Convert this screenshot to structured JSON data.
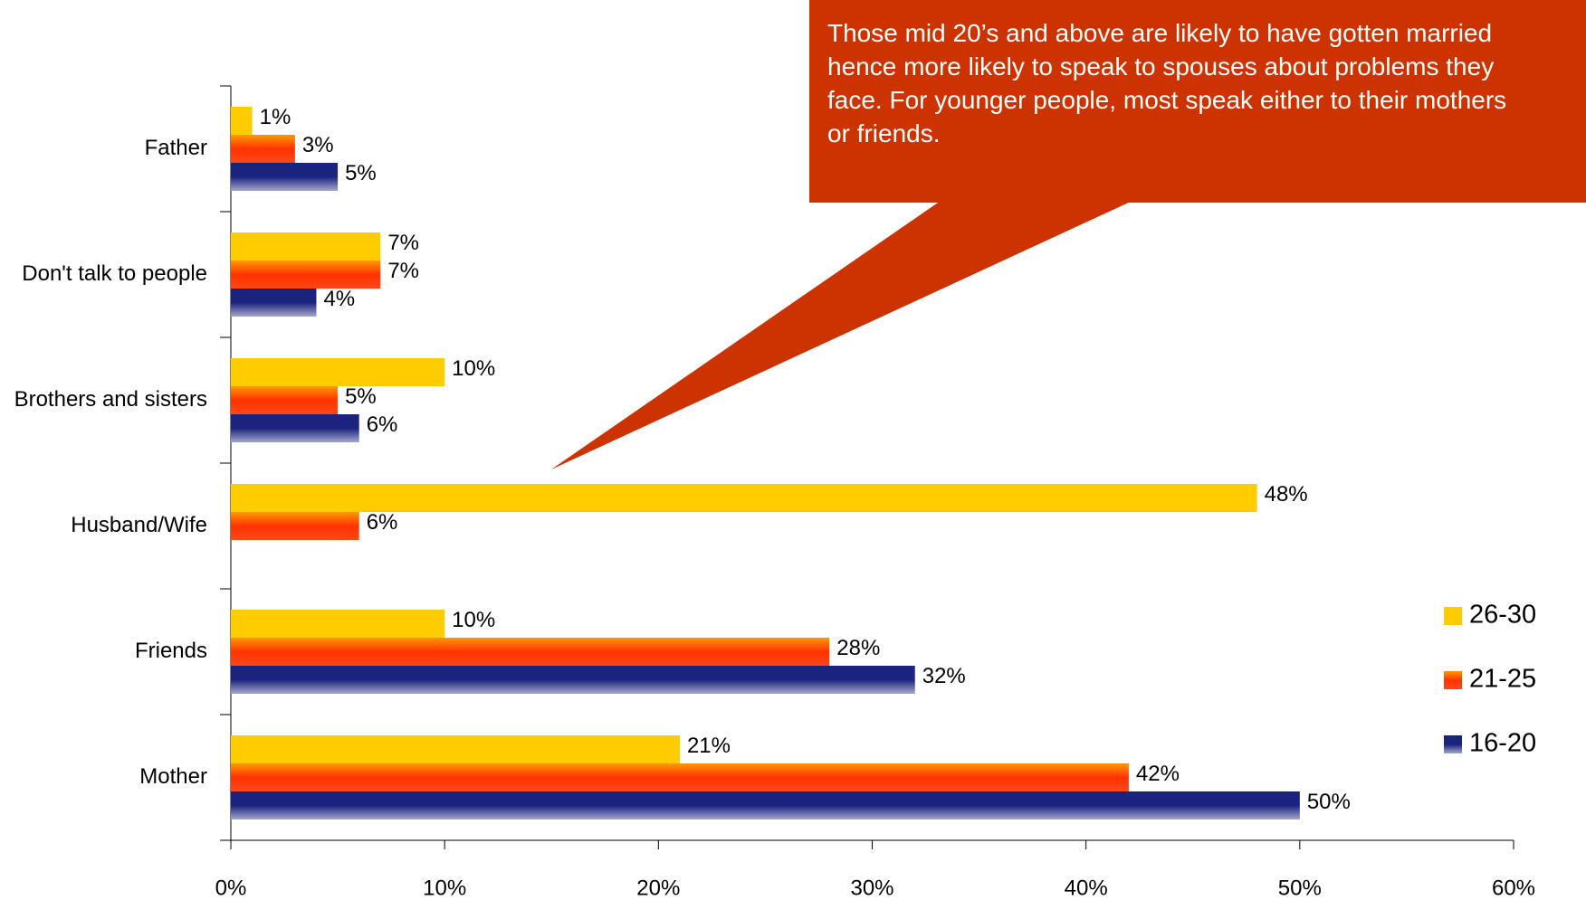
{
  "chart_data": {
    "type": "hbar",
    "annotation": "Those mid 20’s and above are likely to have gotten married hence more likely to speak to spouses about problems they face. For younger people, most speak either to their mothers or friends.",
    "categories": [
      "Father",
      "Don't talk to people",
      "Brothers and sisters",
      "Husband/Wife",
      "Friends",
      "Mother"
    ],
    "series": [
      {
        "name": "26-30",
        "color": "#ffcc00",
        "values": [
          1,
          7,
          10,
          48,
          10,
          21
        ],
        "value_labels": [
          "1%",
          "7%",
          "10%",
          "48%",
          "10%",
          "21%"
        ]
      },
      {
        "name": "21-25",
        "color": "#ff3300",
        "values": [
          3,
          7,
          5,
          6,
          28,
          42
        ],
        "value_labels": [
          "3%",
          "7%",
          "5%",
          "6%",
          "28%",
          "42%"
        ]
      },
      {
        "name": "16-20",
        "color": "#1a237e",
        "values": [
          5,
          4,
          6,
          null,
          32,
          50
        ],
        "value_labels": [
          "5%",
          "4%",
          "6%",
          null,
          "32%",
          "50%"
        ]
      }
    ],
    "xlim": [
      0,
      60
    ],
    "xticks": [
      {
        "value": 0,
        "label": "0%"
      },
      {
        "value": 10,
        "label": "10%"
      },
      {
        "value": 20,
        "label": "20%"
      },
      {
        "value": 30,
        "label": "30%"
      },
      {
        "value": 40,
        "label": "40%"
      },
      {
        "value": 50,
        "label": "50%"
      },
      {
        "value": 60,
        "label": "60%"
      }
    ],
    "legend": "right"
  }
}
